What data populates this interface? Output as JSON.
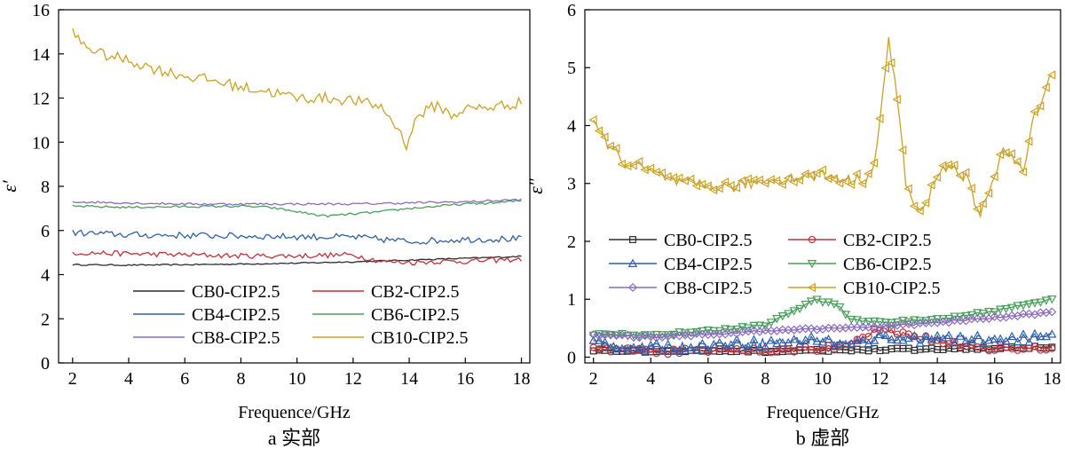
{
  "chart_data": [
    {
      "type": "line",
      "panel_caption": "a  实部",
      "xlabel": "Frequence/GHz",
      "ylabel": "ε′",
      "xlim": [
        1.5,
        18.3
      ],
      "ylim": [
        0,
        16
      ],
      "xticks": [
        "2",
        "4",
        "6",
        "8",
        "10",
        "12",
        "14",
        "16",
        "18"
      ],
      "yticks": [
        "0",
        "2",
        "4",
        "6",
        "8",
        "10",
        "12",
        "14",
        "16"
      ],
      "legend_position": "bottom-center",
      "series": [
        {
          "name": "CB0-CIP2.5",
          "color": "#2b2b2b",
          "marker": "none",
          "x": [
            2,
            4,
            6,
            8,
            10,
            12,
            13,
            14,
            15,
            16,
            17,
            18
          ],
          "y": [
            4.45,
            4.43,
            4.45,
            4.48,
            4.52,
            4.58,
            4.62,
            4.66,
            4.7,
            4.74,
            4.78,
            4.83
          ],
          "noise": 0.03
        },
        {
          "name": "CB2-CIP2.5",
          "color": "#c0303a",
          "marker": "none",
          "x": [
            2,
            4,
            6,
            8,
            10,
            12,
            13,
            14,
            15,
            16,
            17,
            18
          ],
          "y": [
            5.0,
            4.95,
            4.9,
            4.85,
            4.85,
            4.9,
            4.6,
            4.55,
            4.6,
            4.6,
            4.65,
            4.7
          ],
          "noise": 0.12
        },
        {
          "name": "CB4-CIP2.5",
          "color": "#2f5fa8",
          "marker": "none",
          "x": [
            2,
            4,
            6,
            8,
            10,
            12,
            14,
            16,
            18
          ],
          "y": [
            5.9,
            5.8,
            5.78,
            5.75,
            5.72,
            5.7,
            5.5,
            5.6,
            5.62
          ],
          "noise": 0.15
        },
        {
          "name": "CB6-CIP2.5",
          "color": "#4a9e5c",
          "marker": "none",
          "x": [
            2,
            4,
            6,
            8,
            9,
            10,
            11,
            12,
            13,
            14,
            15,
            16,
            17,
            18
          ],
          "y": [
            7.1,
            7.05,
            7.08,
            7.1,
            7.05,
            6.85,
            6.65,
            6.75,
            6.85,
            7.0,
            7.1,
            7.2,
            7.25,
            7.35
          ],
          "noise": 0.05
        },
        {
          "name": "CB8-CIP2.5",
          "color": "#8a6bbd",
          "marker": "none",
          "x": [
            2,
            4,
            6,
            8,
            10,
            12,
            14,
            16,
            18
          ],
          "y": [
            7.3,
            7.25,
            7.2,
            7.2,
            7.2,
            7.2,
            7.25,
            7.3,
            7.4
          ],
          "noise": 0.05
        },
        {
          "name": "CB10-CIP2.5",
          "color": "#c9a227",
          "marker": "none",
          "x": [
            2,
            2.3,
            3,
            4,
            5,
            6,
            7,
            8,
            9,
            10,
            11,
            12,
            13,
            13.5,
            13.9,
            14.3,
            15,
            15.5,
            16,
            17,
            18
          ],
          "y": [
            15.0,
            14.5,
            14.0,
            13.7,
            13.3,
            13.0,
            12.8,
            12.5,
            12.3,
            12.0,
            12.0,
            11.9,
            11.6,
            10.8,
            9.9,
            11.2,
            11.7,
            11.2,
            11.5,
            11.6,
            11.8
          ],
          "noise": 0.25
        }
      ]
    },
    {
      "type": "line",
      "panel_caption": "b  虚部",
      "xlabel": "Frequence/GHz",
      "ylabel": "ε″",
      "xlim": [
        1.7,
        18.3
      ],
      "ylim": [
        -0.1,
        6
      ],
      "xticks": [
        "2",
        "4",
        "6",
        "8",
        "10",
        "12",
        "14",
        "16",
        "18"
      ],
      "yticks": [
        "0",
        "1",
        "2",
        "3",
        "4",
        "5",
        "6"
      ],
      "legend_position": "middle-left",
      "series": [
        {
          "name": "CB0-CIP2.5",
          "color": "#2b2b2b",
          "marker": "square",
          "x": [
            2,
            4,
            6,
            8,
            10,
            12,
            14,
            16,
            18
          ],
          "y": [
            0.12,
            0.1,
            0.1,
            0.1,
            0.12,
            0.13,
            0.14,
            0.15,
            0.18
          ],
          "noise": 0.02
        },
        {
          "name": "CB2-CIP2.5",
          "color": "#c0303a",
          "marker": "circle",
          "x": [
            2,
            4,
            6,
            8,
            10,
            11,
            12,
            13,
            14,
            15,
            16,
            18
          ],
          "y": [
            0.15,
            0.1,
            0.1,
            0.12,
            0.15,
            0.2,
            0.5,
            0.35,
            0.3,
            0.2,
            0.15,
            0.15
          ],
          "noise": 0.05
        },
        {
          "name": "CB4-CIP2.5",
          "color": "#2f5fa8",
          "marker": "triangle-up",
          "x": [
            2,
            4,
            6,
            8,
            10,
            11,
            12,
            14,
            16,
            18
          ],
          "y": [
            0.25,
            0.15,
            0.2,
            0.25,
            0.3,
            0.2,
            0.35,
            0.3,
            0.3,
            0.35
          ],
          "noise": 0.08
        },
        {
          "name": "CB6-CIP2.5",
          "color": "#4a9e5c",
          "marker": "triangle-down",
          "x": [
            2,
            4,
            6,
            8,
            9,
            9.8,
            10.5,
            11,
            12,
            14,
            16,
            18
          ],
          "y": [
            0.4,
            0.38,
            0.45,
            0.55,
            0.8,
            1.0,
            0.9,
            0.65,
            0.6,
            0.65,
            0.8,
            1.0
          ],
          "noise": 0.02
        },
        {
          "name": "CB8-CIP2.5",
          "color": "#8a6bbd",
          "marker": "diamond",
          "x": [
            2,
            4,
            6,
            8,
            10,
            12,
            14,
            16,
            18
          ],
          "y": [
            0.38,
            0.35,
            0.4,
            0.45,
            0.5,
            0.52,
            0.6,
            0.68,
            0.78
          ],
          "noise": 0.02
        },
        {
          "name": "CB10-CIP2.5",
          "color": "#c9a227",
          "marker": "triangle-left",
          "x": [
            2,
            2.5,
            3,
            4,
            5,
            6,
            7,
            8,
            9,
            10,
            10.5,
            11,
            11.5,
            11.8,
            12.1,
            12.3,
            12.6,
            12.9,
            13.3,
            13.6,
            14,
            14.5,
            15,
            15.5,
            15.8,
            16.3,
            17,
            17.4,
            18
          ],
          "y": [
            4.0,
            3.7,
            3.4,
            3.2,
            3.0,
            2.95,
            2.95,
            3.05,
            3.1,
            3.15,
            3.1,
            3.05,
            3.1,
            3.3,
            4.5,
            5.5,
            4.5,
            3.0,
            2.5,
            2.6,
            3.2,
            3.3,
            3.1,
            2.4,
            2.9,
            3.6,
            3.2,
            4.2,
            4.9
          ],
          "noise": 0.1
        }
      ]
    }
  ]
}
